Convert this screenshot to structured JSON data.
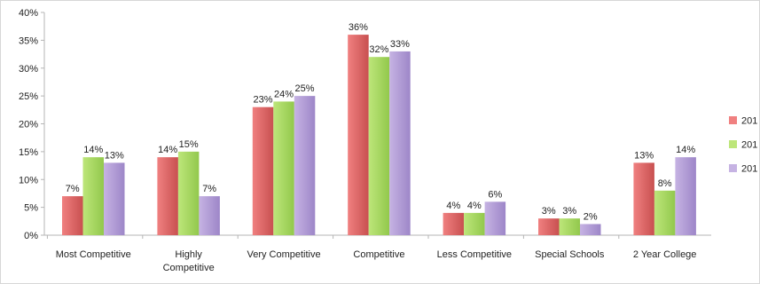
{
  "chart_data": {
    "type": "bar",
    "title": "",
    "xlabel": "",
    "ylabel": "",
    "ylim": [
      0,
      40
    ],
    "y_ticks": [
      "0%",
      "5%",
      "10%",
      "15%",
      "20%",
      "25%",
      "30%",
      "35%",
      "40%"
    ],
    "y_tick_values": [
      0,
      5,
      10,
      15,
      20,
      25,
      30,
      35,
      40
    ],
    "grid": false,
    "legend_position": "right (cut off at image edge)",
    "categories": [
      [
        "Most Competitive"
      ],
      [
        "Highly",
        "Competitive"
      ],
      [
        "Very Competitive"
      ],
      [
        "Competitive"
      ],
      [
        "Less Competitive"
      ],
      [
        "Special Schools"
      ],
      [
        "2 Year College"
      ]
    ],
    "series": [
      {
        "name": "201",
        "color": "#f08080",
        "gradient_to": "#c85050",
        "values": [
          7,
          14,
          23,
          36,
          4,
          3,
          13
        ],
        "labels": [
          "7%",
          "14%",
          "23%",
          "36%",
          "4%",
          "3%",
          "13%"
        ]
      },
      {
        "name": "201",
        "color": "#bde67a",
        "gradient_to": "#92c84c",
        "values": [
          14,
          15,
          24,
          32,
          4,
          3,
          8
        ],
        "labels": [
          "14%",
          "15%",
          "24%",
          "32%",
          "4%",
          "3%",
          "8%"
        ]
      },
      {
        "name": "201",
        "color": "#c6b3e3",
        "gradient_to": "#9d86c8",
        "values": [
          13,
          7,
          25,
          33,
          6,
          2,
          14
        ],
        "labels": [
          "13%",
          "7%",
          "25%",
          "33%",
          "6%",
          "2%",
          "14%"
        ]
      }
    ]
  }
}
